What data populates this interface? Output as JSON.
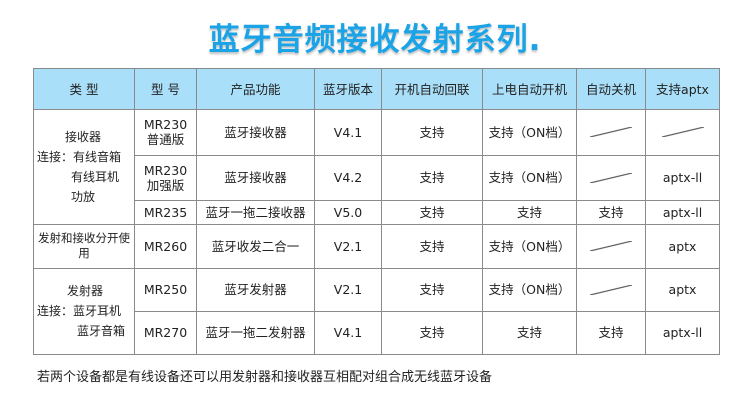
{
  "title": "蓝牙音频接收发射系列",
  "title_dot": ".",
  "headers": [
    "类 型",
    "型 号",
    "产品功能",
    "蓝牙版本",
    "开机自动回联",
    "上电自动开机",
    "自动关机",
    "支持aptx"
  ],
  "categories": {
    "receiver": [
      "接收器",
      "连接：有线音箱",
      "有线耳机",
      "功放"
    ],
    "both": "发射和接收分开使用",
    "transmitter": [
      "发射器",
      "连接：蓝牙耳机",
      "蓝牙音箱"
    ]
  },
  "rows": [
    {
      "model": "MR230\n普通版",
      "function": "蓝牙接收器",
      "version": "V4.1",
      "reconnect": "支持",
      "power_on": "支持（ON档）",
      "auto_off": "",
      "aptx": ""
    },
    {
      "model": "MR230\n加强版",
      "function": "蓝牙接收器",
      "version": "V4.2",
      "reconnect": "支持",
      "power_on": "支持（ON档）",
      "auto_off": "",
      "aptx": "aptx-ll"
    },
    {
      "model": "MR235",
      "function": "蓝牙一拖二接收器",
      "version": "V5.0",
      "reconnect": "支持",
      "power_on": "支持",
      "auto_off": "支持",
      "aptx": "aptx-ll"
    },
    {
      "model": "MR260",
      "function": "蓝牙收发二合一",
      "version": "V2.1",
      "reconnect": "支持",
      "power_on": "支持（ON档）",
      "auto_off": "",
      "aptx": "aptx"
    },
    {
      "model": "MR250",
      "function": "蓝牙发射器",
      "version": "V2.1",
      "reconnect": "支持",
      "power_on": "支持（ON档）",
      "auto_off": "",
      "aptx": "aptx"
    },
    {
      "model": "MR270",
      "function": "蓝牙一拖二发射器",
      "version": "V4.1",
      "reconnect": "支持",
      "power_on": "支持",
      "auto_off": "支持",
      "aptx": "aptx-ll"
    }
  ],
  "footnote": "若两个设备都是有线设备还可以用发射器和接收器互相配对组合成无线蓝牙设备",
  "colors": {
    "title": "#1aa3e6",
    "header_bg": "#a9dff8",
    "border": "#8a8a8a"
  }
}
